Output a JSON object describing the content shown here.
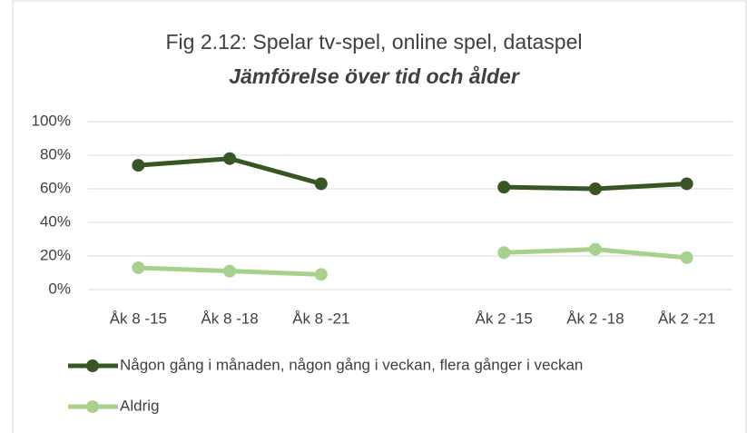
{
  "chart_data": {
    "type": "line",
    "title": "Fig 2.12: Spelar tv-spel, online spel, dataspel",
    "subtitle": "Jämförelse över tid och ålder",
    "categories": [
      "Åk 8 -15",
      "Åk 8 -18",
      "Åk 8 -21",
      null,
      "Åk 2 -15",
      "Åk 2 -18",
      "Åk 2 -21"
    ],
    "series": [
      {
        "name": "Någon gång i månaden, någon gång i veckan, flera gånger i veckan",
        "color": "#375623",
        "values": [
          74,
          78,
          63,
          null,
          61,
          60,
          63
        ]
      },
      {
        "name": "Aldrig",
        "color": "#a9d18e",
        "values": [
          13,
          11,
          9,
          null,
          22,
          24,
          19
        ]
      }
    ],
    "ylim": [
      0,
      100
    ],
    "yticks": [
      {
        "value": 0,
        "label": "0%"
      },
      {
        "value": 20,
        "label": "20%"
      },
      {
        "value": 40,
        "label": "40%"
      },
      {
        "value": 60,
        "label": "60%"
      },
      {
        "value": 80,
        "label": "80%"
      },
      {
        "value": 100,
        "label": "100%"
      }
    ],
    "grid": true,
    "legend": "bottom"
  }
}
